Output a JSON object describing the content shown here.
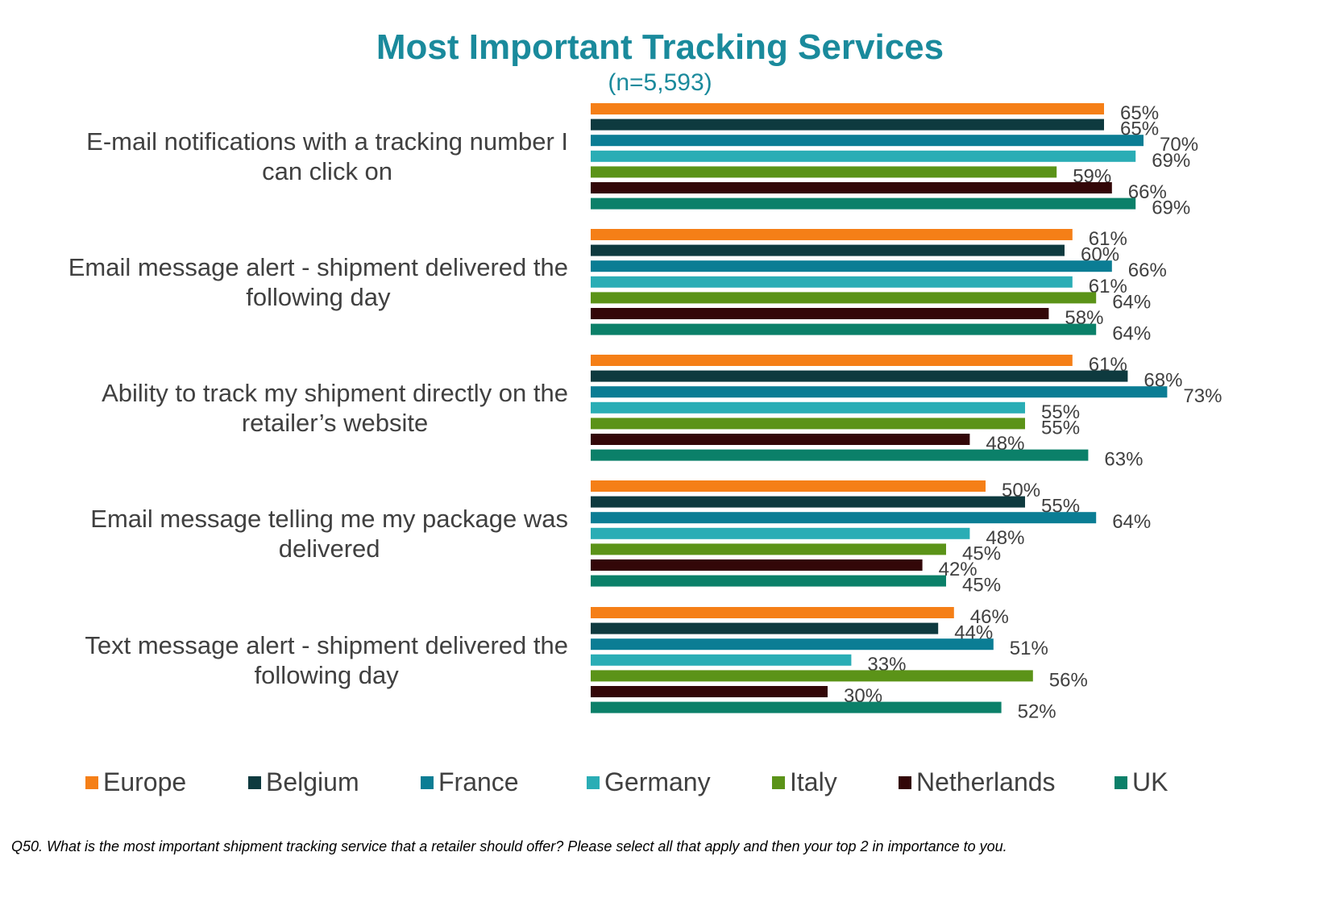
{
  "chart_data": {
    "type": "bar",
    "orientation": "horizontal",
    "title": "Most Important Tracking Services",
    "subtitle": "(n=5,593)",
    "categories": [
      "E-mail notifications with a tracking number I can click on",
      "Email message alert - shipment delivered the following day",
      "Ability to track my shipment directly on the retailer’s website",
      "Email message telling me my package was delivered",
      "Text message alert - shipment delivered the following day"
    ],
    "category_lines": [
      [
        "E-mail notifications with a tracking number I",
        "can click on"
      ],
      [
        "Email message alert - shipment delivered the",
        "following day"
      ],
      [
        "Ability to track my shipment directly on the",
        "retailer’s website"
      ],
      [
        "Email message telling me my package was",
        "delivered"
      ],
      [
        "Text message alert - shipment delivered the",
        "following day"
      ]
    ],
    "series": [
      {
        "name": "Europe",
        "color": "#f57f17",
        "values": [
          65,
          61,
          61,
          50,
          46
        ]
      },
      {
        "name": "Belgium",
        "color": "#0e3a3f",
        "values": [
          65,
          60,
          68,
          55,
          44
        ]
      },
      {
        "name": "France",
        "color": "#0b7d94",
        "values": [
          70,
          66,
          73,
          64,
          51
        ]
      },
      {
        "name": "Germany",
        "color": "#2aadb5",
        "values": [
          69,
          61,
          55,
          48,
          33
        ]
      },
      {
        "name": "Italy",
        "color": "#5b9318",
        "values": [
          59,
          64,
          55,
          45,
          56
        ]
      },
      {
        "name": "Netherlands",
        "color": "#330708",
        "values": [
          66,
          58,
          48,
          42,
          30
        ]
      },
      {
        "name": "UK",
        "color": "#0b8069",
        "values": [
          69,
          64,
          63,
          45,
          52
        ]
      }
    ],
    "value_suffix": "%",
    "xlim": [
      0,
      100
    ],
    "grid": false,
    "legend_position": "bottom"
  },
  "footnote": "Q50.  What is the most important shipment tracking service that a retailer should offer? Please select all that apply and then your top 2 in importance to you."
}
